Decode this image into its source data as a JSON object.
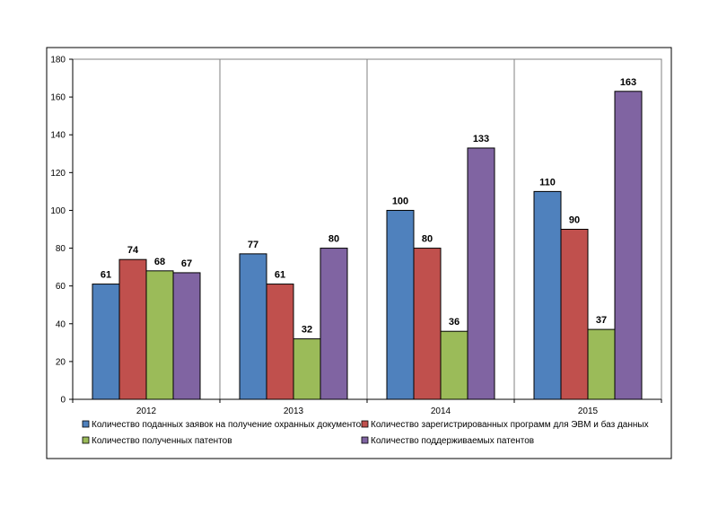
{
  "chart_data": {
    "type": "bar",
    "title": "",
    "xlabel": "",
    "ylabel": "",
    "categories": [
      "2012",
      "2013",
      "2014",
      "2015"
    ],
    "ylim": [
      0,
      180
    ],
    "yticks": [
      0,
      20,
      40,
      60,
      80,
      100,
      120,
      140,
      160,
      180
    ],
    "grid": "vertical category separators",
    "legend_position": "bottom",
    "series": [
      {
        "name": "Количество поданных заявок на получение охранных документов",
        "color": "#4f81bd",
        "values": [
          61,
          77,
          100,
          110
        ]
      },
      {
        "name": "Количество зарегистрированных программ для ЭВМ и баз данных",
        "color": "#c0504d",
        "values": [
          74,
          61,
          80,
          90
        ]
      },
      {
        "name": "Количество полученных патентов",
        "color": "#9bbb59",
        "values": [
          68,
          32,
          36,
          37
        ]
      },
      {
        "name": "Количество поддерживаемых патентов",
        "color": "#8064a2",
        "values": [
          67,
          80,
          133,
          163
        ]
      }
    ]
  }
}
